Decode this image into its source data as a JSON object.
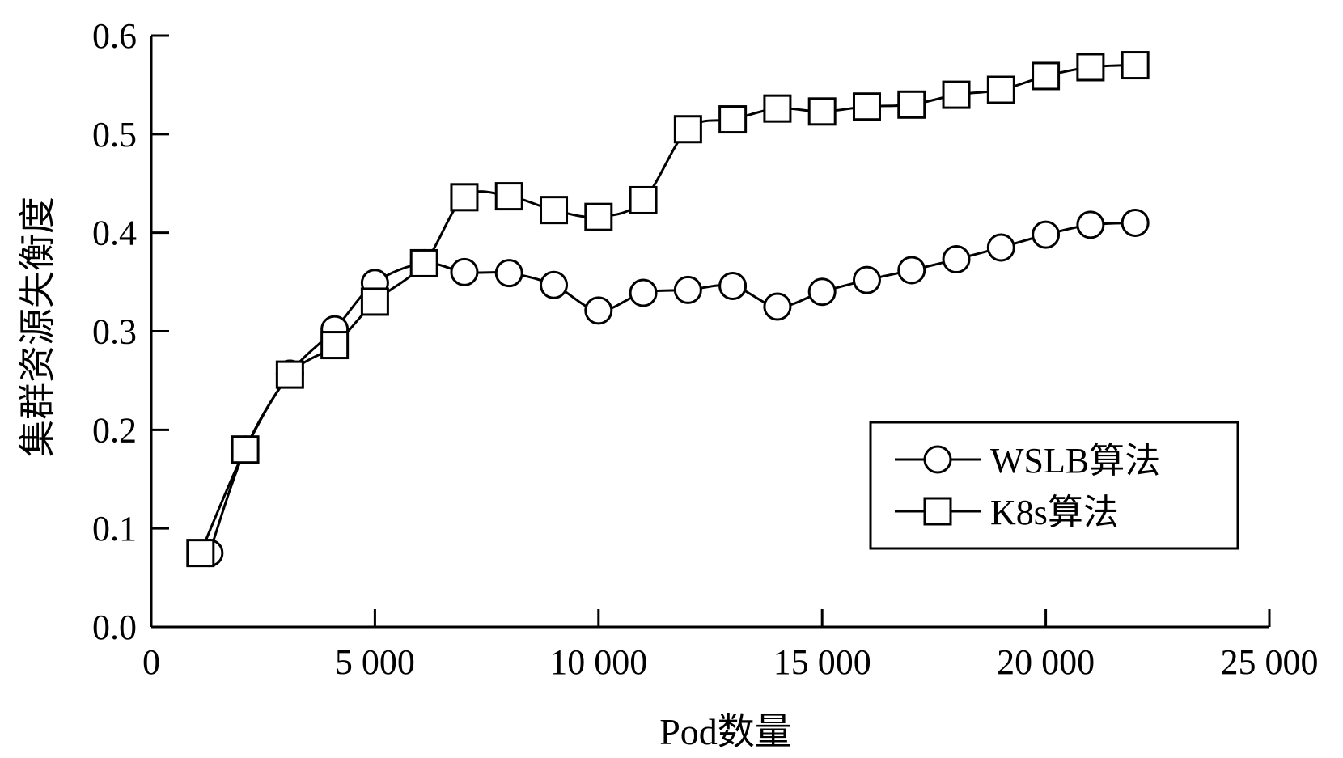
{
  "chart_data": {
    "type": "line",
    "title": "",
    "xlabel": "Pod数量",
    "ylabel": "集群资源失衡度",
    "xlim": [
      0,
      25000
    ],
    "ylim": [
      0,
      0.6
    ],
    "x_ticks": [
      0,
      5000,
      10000,
      15000,
      20000,
      25000
    ],
    "x_tick_labels": [
      "0",
      "5 000",
      "10 000",
      "15 000",
      "20 000",
      "25 000"
    ],
    "y_ticks": [
      0,
      0.1,
      0.2,
      0.3,
      0.4,
      0.5,
      0.6
    ],
    "y_tick_labels": [
      "0.0",
      "0.1",
      "0.2",
      "0.3",
      "0.4",
      "0.5",
      "0.6"
    ],
    "grid": false,
    "legend_position": "bottom-right",
    "series": [
      {
        "name": "WSLB算法",
        "marker": "circle",
        "color": "#000000",
        "x": [
          1300,
          2100,
          3100,
          4100,
          5000,
          6100,
          7000,
          8000,
          9000,
          10000,
          11000,
          12000,
          13000,
          14000,
          15000,
          16000,
          17000,
          18000,
          19000,
          20000,
          21000,
          22000
        ],
        "y": [
          0.075,
          0.18,
          0.257,
          0.302,
          0.349,
          0.369,
          0.36,
          0.359,
          0.347,
          0.321,
          0.339,
          0.342,
          0.346,
          0.325,
          0.34,
          0.352,
          0.362,
          0.373,
          0.385,
          0.398,
          0.408,
          0.41
        ]
      },
      {
        "name": "K8s算法",
        "marker": "square",
        "color": "#000000",
        "x": [
          1100,
          2100,
          3100,
          4100,
          5000,
          6100,
          7000,
          8000,
          9000,
          10000,
          11000,
          12000,
          13000,
          14000,
          15000,
          16000,
          17000,
          18000,
          19000,
          20000,
          21000,
          22000
        ],
        "y": [
          0.075,
          0.18,
          0.256,
          0.286,
          0.33,
          0.369,
          0.436,
          0.437,
          0.423,
          0.416,
          0.433,
          0.505,
          0.515,
          0.526,
          0.523,
          0.528,
          0.53,
          0.54,
          0.545,
          0.559,
          0.568,
          0.57
        ]
      }
    ]
  }
}
